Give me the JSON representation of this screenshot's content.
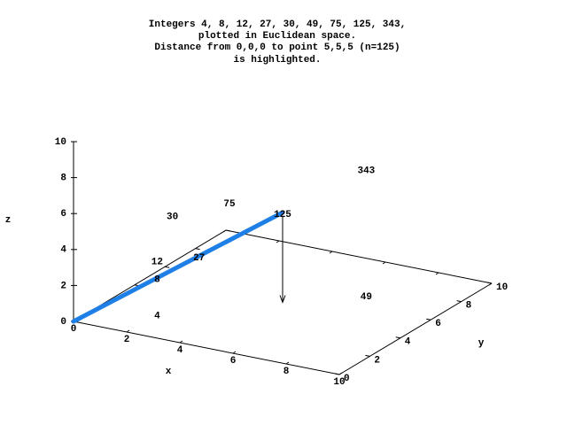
{
  "chart_data": {
    "type": "scatter3d",
    "title": [
      "Integers 4, 8, 12, 27, 30, 49, 75, 125, 343,",
      "plotted in Euclidean space.",
      "Distance from 0,0,0 to point 5,5,5 (n=125)",
      "is highlighted."
    ],
    "xlabel": "x",
    "ylabel": "y",
    "zlabel": "z",
    "labels": [
      4,
      8,
      12,
      27,
      30,
      49,
      75,
      125,
      343
    ],
    "x": [
      2,
      2,
      2,
      3,
      2,
      7,
      3,
      5,
      7
    ],
    "y": [
      2,
      2,
      2,
      3,
      3,
      7,
      5,
      5,
      7
    ],
    "z": [
      0,
      2,
      3,
      3,
      5,
      0,
      5,
      5,
      7
    ],
    "xlim": [
      0,
      10
    ],
    "ylim": [
      0,
      10
    ],
    "zlim": [
      0,
      10
    ],
    "xticks": [
      0,
      2,
      4,
      6,
      8,
      10
    ],
    "yticks": [
      0,
      2,
      4,
      6,
      8,
      10
    ],
    "zticks": [
      0,
      2,
      4,
      6,
      8,
      10
    ],
    "highlight": {
      "from": [
        0,
        0,
        0
      ],
      "to": [
        5,
        5,
        5
      ],
      "color": "#1e7fe6"
    },
    "arrow": {
      "from": [
        5,
        5,
        5
      ],
      "to": [
        5,
        5,
        0
      ]
    }
  }
}
